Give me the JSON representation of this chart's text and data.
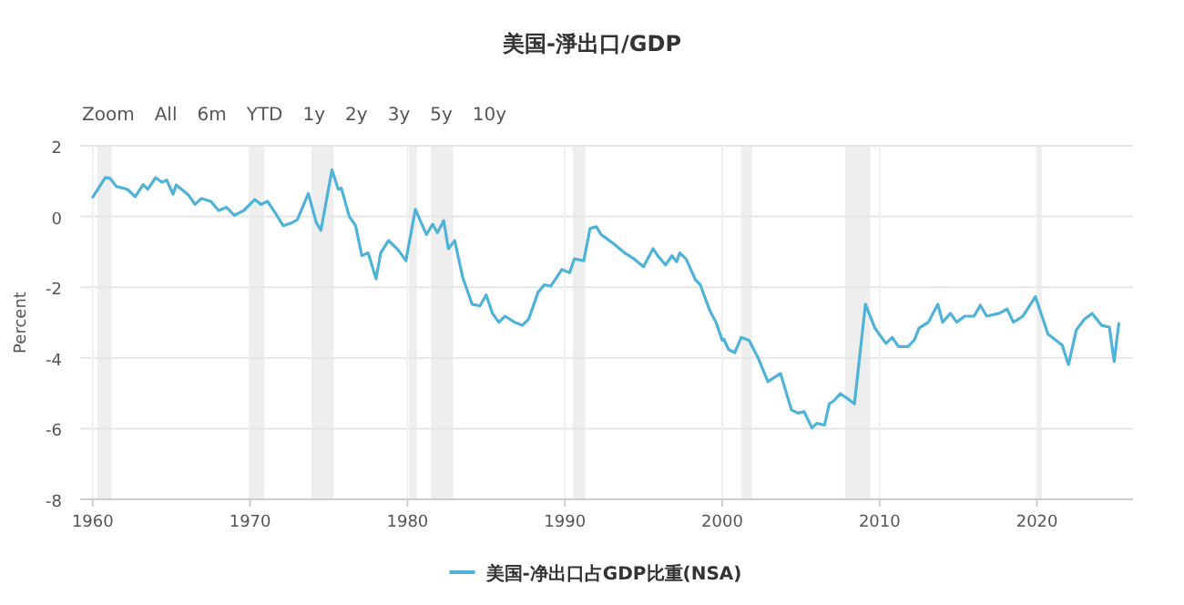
{
  "chart_data": {
    "type": "line",
    "title": "美国-淨出口/GDP",
    "ylabel": "Percent",
    "annotations": [
      "Zoom",
      "All",
      "6m",
      "YTD",
      "1y",
      "2y",
      "3y",
      "5y",
      "10y"
    ],
    "xlim": [
      1959.2,
      2026.1
    ],
    "xticks": [
      1960,
      1970,
      1980,
      1990,
      2000,
      2010,
      2020
    ],
    "ylim": [
      -8,
      2
    ],
    "yticks": [
      -8,
      -6,
      -4,
      -2,
      0,
      2
    ],
    "grid": true,
    "legend": "bottom",
    "bands": [
      {
        "axis": "x",
        "from": 1960.3,
        "to": 1961.2,
        "color": "#eeeeee"
      },
      {
        "axis": "x",
        "from": 1969.9,
        "to": 1970.9,
        "color": "#eeeeee"
      },
      {
        "axis": "x",
        "from": 1973.9,
        "to": 1975.3,
        "color": "#eeeeee"
      },
      {
        "axis": "x",
        "from": 1980.1,
        "to": 1980.6,
        "color": "#eeeeee"
      },
      {
        "axis": "x",
        "from": 1981.5,
        "to": 1982.9,
        "color": "#eeeeee"
      },
      {
        "axis": "x",
        "from": 1990.5,
        "to": 1991.3,
        "color": "#eeeeee"
      },
      {
        "axis": "x",
        "from": 2001.2,
        "to": 2001.9,
        "color": "#eeeeee"
      },
      {
        "axis": "x",
        "from": 2007.8,
        "to": 2009.4,
        "color": "#eeeeee"
      },
      {
        "axis": "x",
        "from": 2020.0,
        "to": 2020.3,
        "color": "#eeeeee"
      }
    ],
    "series": [
      {
        "name": "美国-净出口占GDP比重(NSA)",
        "color": "#4fb3d9",
        "x": [
          1960.0,
          1960.8,
          1961.1,
          1961.5,
          1962.2,
          1962.7,
          1963.2,
          1963.5,
          1964.0,
          1964.4,
          1964.7,
          1965.1,
          1965.3,
          1966.1,
          1966.5,
          1966.9,
          1967.5,
          1968.0,
          1968.5,
          1969.0,
          1969.6,
          1970.3,
          1970.7,
          1971.1,
          1971.5,
          1972.1,
          1972.7,
          1973.0,
          1973.7,
          1974.2,
          1974.5,
          1975.2,
          1975.6,
          1975.8,
          1976.3,
          1976.7,
          1977.1,
          1977.5,
          1978.0,
          1978.3,
          1978.8,
          1979.4,
          1979.9,
          1980.5,
          1981.2,
          1981.6,
          1981.9,
          1982.3,
          1982.6,
          1983.0,
          1983.5,
          1984.1,
          1984.6,
          1985.0,
          1985.4,
          1985.8,
          1986.2,
          1986.8,
          1987.3,
          1987.7,
          1988.3,
          1988.7,
          1989.1,
          1989.5,
          1989.8,
          1990.3,
          1990.6,
          1991.2,
          1991.6,
          1992.0,
          1992.3,
          1993.1,
          1993.8,
          1994.4,
          1995.0,
          1995.6,
          1995.9,
          1996.4,
          1996.8,
          1997.1,
          1997.3,
          1997.7,
          1998.3,
          1998.6,
          1999.2,
          1999.6,
          2000.0,
          2000.1,
          2000.4,
          2000.8,
          2001.2,
          2001.7,
          2002.3,
          2002.9,
          2003.7,
          2004.4,
          2004.8,
          2005.2,
          2005.7,
          2006.0,
          2006.5,
          2006.8,
          2007.1,
          2007.5,
          2007.9,
          2008.4,
          2009.1,
          2009.7,
          2010.4,
          2010.8,
          2011.2,
          2011.8,
          2012.2,
          2012.5,
          2013.1,
          2013.7,
          2014.0,
          2014.5,
          2014.9,
          2015.4,
          2016.0,
          2016.4,
          2016.8,
          2017.6,
          2018.1,
          2018.5,
          2019.1,
          2019.9,
          2020.7,
          2021.2,
          2021.6,
          2022.0,
          2022.5,
          2023.0,
          2023.5,
          2024.1,
          2024.6,
          2024.9,
          2025.2
        ],
        "values": [
          0.55,
          1.1,
          1.08,
          0.85,
          0.77,
          0.56,
          0.9,
          0.77,
          1.1,
          0.97,
          1.03,
          0.63,
          0.89,
          0.6,
          0.34,
          0.51,
          0.43,
          0.17,
          0.26,
          0.03,
          0.17,
          0.48,
          0.34,
          0.43,
          0.17,
          -0.26,
          -0.17,
          -0.09,
          0.65,
          -0.17,
          -0.39,
          1.32,
          0.77,
          0.8,
          0,
          -0.26,
          -1.11,
          -1.03,
          -1.76,
          -1.03,
          -0.68,
          -0.94,
          -1.25,
          0.2,
          -0.51,
          -0.22,
          -0.46,
          -0.12,
          -0.91,
          -0.68,
          -1.71,
          -2.48,
          -2.53,
          -2.22,
          -2.74,
          -2.99,
          -2.82,
          -2.99,
          -3.08,
          -2.9,
          -2.14,
          -1.93,
          -1.97,
          -1.71,
          -1.5,
          -1.59,
          -1.2,
          -1.25,
          -0.34,
          -0.29,
          -0.51,
          -0.77,
          -1.03,
          -1.2,
          -1.42,
          -0.91,
          -1.11,
          -1.37,
          -1.11,
          -1.28,
          -1.03,
          -1.2,
          -1.79,
          -1.93,
          -2.65,
          -2.99,
          -3.5,
          -3.47,
          -3.76,
          -3.85,
          -3.42,
          -3.5,
          -4.02,
          -4.67,
          -4.44,
          -5.47,
          -5.56,
          -5.52,
          -5.98,
          -5.85,
          -5.9,
          -5.3,
          -5.21,
          -5.01,
          -5.13,
          -5.3,
          -2.48,
          -3.16,
          -3.59,
          -3.42,
          -3.68,
          -3.68,
          -3.5,
          -3.16,
          -2.99,
          -2.48,
          -2.99,
          -2.74,
          -2.99,
          -2.82,
          -2.82,
          -2.51,
          -2.82,
          -2.74,
          -2.62,
          -2.99,
          -2.82,
          -2.27,
          -3.33,
          -3.5,
          -3.64,
          -4.19,
          -3.21,
          -2.91,
          -2.74,
          -3.08,
          -3.13,
          -4.1,
          -3.03
        ]
      }
    ]
  }
}
